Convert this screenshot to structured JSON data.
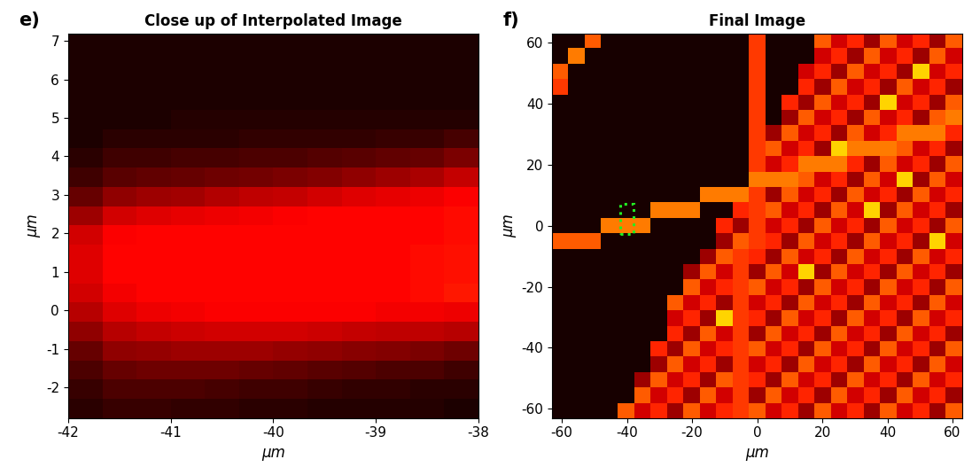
{
  "chart_data": [
    {
      "type": "heatmap",
      "panel_label": "e)",
      "title": "Close up of Interpolated Image",
      "x_label": "μm",
      "y_label": "μm",
      "xlim": [
        -42,
        -38
      ],
      "xticks": [
        -42,
        -41,
        -40,
        -39,
        -38
      ],
      "ylim": [
        -2.8,
        7.2
      ],
      "yticks": [
        -2,
        -1,
        0,
        1,
        2,
        3,
        4,
        5,
        6,
        7
      ],
      "cell_range": [
        0,
        1
      ],
      "cells": [
        [
          0.03,
          0.03,
          0.03,
          0.03,
          0.03,
          0.03,
          0.03,
          0.03,
          0.03,
          0.03,
          0.03,
          0.03
        ],
        [
          0.03,
          0.03,
          0.03,
          0.03,
          0.03,
          0.03,
          0.03,
          0.03,
          0.03,
          0.03,
          0.03,
          0.03
        ],
        [
          0.03,
          0.03,
          0.03,
          0.03,
          0.03,
          0.03,
          0.03,
          0.03,
          0.03,
          0.03,
          0.03,
          0.03
        ],
        [
          0.03,
          0.03,
          0.03,
          0.03,
          0.03,
          0.03,
          0.03,
          0.03,
          0.03,
          0.03,
          0.03,
          0.03
        ],
        [
          0.03,
          0.03,
          0.03,
          0.04,
          0.04,
          0.04,
          0.04,
          0.04,
          0.04,
          0.04,
          0.04,
          0.04
        ],
        [
          0.03,
          0.05,
          0.05,
          0.05,
          0.05,
          0.06,
          0.06,
          0.06,
          0.06,
          0.07,
          0.07,
          0.09
        ],
        [
          0.05,
          0.08,
          0.08,
          0.09,
          0.09,
          0.1,
          0.1,
          0.11,
          0.12,
          0.13,
          0.14,
          0.17
        ],
        [
          0.08,
          0.12,
          0.13,
          0.14,
          0.15,
          0.16,
          0.17,
          0.18,
          0.2,
          0.22,
          0.24,
          0.28
        ],
        [
          0.14,
          0.2,
          0.22,
          0.23,
          0.25,
          0.27,
          0.28,
          0.3,
          0.32,
          0.33,
          0.34,
          0.36
        ],
        [
          0.22,
          0.3,
          0.32,
          0.33,
          0.34,
          0.35,
          0.36,
          0.37,
          0.37,
          0.37,
          0.37,
          0.38
        ],
        [
          0.3,
          0.36,
          0.37,
          0.37,
          0.37,
          0.37,
          0.37,
          0.37,
          0.37,
          0.37,
          0.37,
          0.38
        ],
        [
          0.32,
          0.37,
          0.37,
          0.37,
          0.37,
          0.37,
          0.37,
          0.37,
          0.37,
          0.37,
          0.38,
          0.39
        ],
        [
          0.32,
          0.37,
          0.37,
          0.37,
          0.37,
          0.37,
          0.37,
          0.37,
          0.37,
          0.37,
          0.38,
          0.39
        ],
        [
          0.3,
          0.35,
          0.37,
          0.37,
          0.37,
          0.37,
          0.37,
          0.37,
          0.37,
          0.37,
          0.38,
          0.4
        ],
        [
          0.26,
          0.32,
          0.34,
          0.35,
          0.36,
          0.36,
          0.36,
          0.36,
          0.36,
          0.35,
          0.35,
          0.34
        ],
        [
          0.2,
          0.26,
          0.28,
          0.29,
          0.3,
          0.3,
          0.3,
          0.29,
          0.28,
          0.27,
          0.27,
          0.26
        ],
        [
          0.14,
          0.2,
          0.21,
          0.22,
          0.22,
          0.22,
          0.21,
          0.2,
          0.19,
          0.18,
          0.17,
          0.15
        ],
        [
          0.1,
          0.14,
          0.15,
          0.15,
          0.15,
          0.14,
          0.13,
          0.12,
          0.11,
          0.1,
          0.1,
          0.08
        ],
        [
          0.07,
          0.1,
          0.1,
          0.1,
          0.09,
          0.08,
          0.08,
          0.07,
          0.06,
          0.06,
          0.05,
          0.05
        ],
        [
          0.05,
          0.07,
          0.07,
          0.06,
          0.06,
          0.05,
          0.05,
          0.04,
          0.04,
          0.04,
          0.04,
          0.03
        ]
      ]
    },
    {
      "type": "heatmap",
      "panel_label": "f)",
      "title": "Final Image",
      "x_label": "μm",
      "y_label": "μm",
      "xlim": [
        -63,
        63
      ],
      "xticks": [
        -60,
        -40,
        -20,
        0,
        20,
        40,
        60
      ],
      "ylim": [
        -63,
        63
      ],
      "yticks": [
        -60,
        -40,
        -20,
        0,
        20,
        40,
        60
      ],
      "cell_range": [
        0,
        1
      ],
      "cells": [
        [
          0.02,
          0.02,
          0.5,
          0.02,
          0.02,
          0.02,
          0.02,
          0.02,
          0.02,
          0.02,
          0.02,
          0.02,
          0.45,
          0.02,
          0.02,
          0.02,
          0.5,
          0.3,
          0.42,
          0.22,
          0.5,
          0.3,
          0.42,
          0.22,
          0.5
        ],
        [
          0.02,
          0.55,
          0.02,
          0.02,
          0.02,
          0.02,
          0.02,
          0.02,
          0.02,
          0.02,
          0.02,
          0.02,
          0.45,
          0.02,
          0.02,
          0.02,
          0.3,
          0.42,
          0.22,
          0.5,
          0.3,
          0.42,
          0.22,
          0.5,
          0.3
        ],
        [
          0.5,
          0.02,
          0.02,
          0.02,
          0.02,
          0.02,
          0.02,
          0.02,
          0.02,
          0.02,
          0.02,
          0.02,
          0.45,
          0.02,
          0.02,
          0.3,
          0.42,
          0.22,
          0.5,
          0.3,
          0.42,
          0.22,
          0.68,
          0.3,
          0.42
        ],
        [
          0.45,
          0.02,
          0.02,
          0.02,
          0.02,
          0.02,
          0.02,
          0.02,
          0.02,
          0.02,
          0.02,
          0.02,
          0.45,
          0.02,
          0.02,
          0.42,
          0.22,
          0.5,
          0.3,
          0.42,
          0.22,
          0.5,
          0.3,
          0.42,
          0.22
        ],
        [
          0.02,
          0.02,
          0.02,
          0.02,
          0.02,
          0.02,
          0.02,
          0.02,
          0.02,
          0.02,
          0.02,
          0.02,
          0.45,
          0.02,
          0.42,
          0.22,
          0.5,
          0.3,
          0.42,
          0.22,
          0.68,
          0.3,
          0.42,
          0.22,
          0.5
        ],
        [
          0.02,
          0.02,
          0.02,
          0.02,
          0.02,
          0.02,
          0.02,
          0.02,
          0.02,
          0.02,
          0.02,
          0.02,
          0.45,
          0.02,
          0.22,
          0.5,
          0.3,
          0.42,
          0.22,
          0.5,
          0.3,
          0.42,
          0.22,
          0.5,
          0.55
        ],
        [
          0.02,
          0.02,
          0.02,
          0.02,
          0.02,
          0.02,
          0.02,
          0.02,
          0.02,
          0.02,
          0.02,
          0.02,
          0.45,
          0.22,
          0.5,
          0.3,
          0.42,
          0.22,
          0.5,
          0.3,
          0.42,
          0.55,
          0.55,
          0.55,
          0.42
        ],
        [
          0.02,
          0.02,
          0.02,
          0.02,
          0.02,
          0.02,
          0.02,
          0.02,
          0.02,
          0.02,
          0.02,
          0.02,
          0.45,
          0.5,
          0.3,
          0.42,
          0.22,
          0.68,
          0.55,
          0.55,
          0.55,
          0.5,
          0.3,
          0.42,
          0.22
        ],
        [
          0.02,
          0.02,
          0.02,
          0.02,
          0.02,
          0.02,
          0.02,
          0.02,
          0.02,
          0.02,
          0.02,
          0.02,
          0.45,
          0.3,
          0.42,
          0.55,
          0.55,
          0.55,
          0.42,
          0.22,
          0.5,
          0.3,
          0.42,
          0.22,
          0.5
        ],
        [
          0.02,
          0.02,
          0.02,
          0.02,
          0.02,
          0.02,
          0.02,
          0.02,
          0.02,
          0.02,
          0.02,
          0.02,
          0.55,
          0.55,
          0.55,
          0.5,
          0.3,
          0.42,
          0.22,
          0.5,
          0.3,
          0.68,
          0.22,
          0.5,
          0.3
        ],
        [
          0.02,
          0.02,
          0.02,
          0.02,
          0.02,
          0.02,
          0.02,
          0.02,
          0.02,
          0.55,
          0.55,
          0.55,
          0.45,
          0.22,
          0.5,
          0.3,
          0.42,
          0.22,
          0.5,
          0.3,
          0.42,
          0.22,
          0.5,
          0.3,
          0.42
        ],
        [
          0.02,
          0.02,
          0.02,
          0.02,
          0.02,
          0.02,
          0.55,
          0.55,
          0.55,
          0.02,
          0.02,
          0.42,
          0.45,
          0.5,
          0.3,
          0.42,
          0.22,
          0.5,
          0.3,
          0.68,
          0.22,
          0.5,
          0.3,
          0.42,
          0.22
        ],
        [
          0.02,
          0.02,
          0.02,
          0.55,
          0.55,
          0.55,
          0.02,
          0.02,
          0.02,
          0.02,
          0.42,
          0.22,
          0.45,
          0.3,
          0.42,
          0.22,
          0.5,
          0.3,
          0.42,
          0.22,
          0.5,
          0.3,
          0.42,
          0.22,
          0.5
        ],
        [
          0.5,
          0.5,
          0.5,
          0.02,
          0.02,
          0.02,
          0.02,
          0.02,
          0.02,
          0.02,
          0.22,
          0.5,
          0.45,
          0.42,
          0.22,
          0.5,
          0.3,
          0.42,
          0.22,
          0.5,
          0.3,
          0.42,
          0.22,
          0.68,
          0.3
        ],
        [
          0.02,
          0.02,
          0.02,
          0.02,
          0.02,
          0.02,
          0.02,
          0.02,
          0.02,
          0.22,
          0.5,
          0.45,
          0.42,
          0.22,
          0.5,
          0.3,
          0.42,
          0.22,
          0.5,
          0.3,
          0.42,
          0.22,
          0.5,
          0.3,
          0.42
        ],
        [
          0.02,
          0.02,
          0.02,
          0.02,
          0.02,
          0.02,
          0.02,
          0.02,
          0.22,
          0.5,
          0.3,
          0.45,
          0.22,
          0.5,
          0.3,
          0.68,
          0.22,
          0.5,
          0.3,
          0.42,
          0.22,
          0.5,
          0.3,
          0.42,
          0.22
        ],
        [
          0.02,
          0.02,
          0.02,
          0.02,
          0.02,
          0.02,
          0.02,
          0.02,
          0.5,
          0.3,
          0.42,
          0.45,
          0.5,
          0.3,
          0.42,
          0.22,
          0.5,
          0.3,
          0.42,
          0.22,
          0.5,
          0.3,
          0.42,
          0.22,
          0.5
        ],
        [
          0.02,
          0.02,
          0.02,
          0.02,
          0.02,
          0.02,
          0.02,
          0.5,
          0.3,
          0.42,
          0.22,
          0.45,
          0.3,
          0.42,
          0.22,
          0.5,
          0.3,
          0.42,
          0.22,
          0.5,
          0.3,
          0.42,
          0.22,
          0.5,
          0.3
        ],
        [
          0.02,
          0.02,
          0.02,
          0.02,
          0.02,
          0.02,
          0.02,
          0.3,
          0.42,
          0.22,
          0.68,
          0.45,
          0.42,
          0.22,
          0.5,
          0.3,
          0.42,
          0.22,
          0.5,
          0.3,
          0.42,
          0.22,
          0.5,
          0.3,
          0.42
        ],
        [
          0.02,
          0.02,
          0.02,
          0.02,
          0.02,
          0.02,
          0.02,
          0.42,
          0.22,
          0.5,
          0.3,
          0.45,
          0.22,
          0.5,
          0.3,
          0.42,
          0.22,
          0.5,
          0.3,
          0.42,
          0.22,
          0.5,
          0.3,
          0.42,
          0.22
        ],
        [
          0.02,
          0.02,
          0.02,
          0.02,
          0.02,
          0.02,
          0.42,
          0.22,
          0.5,
          0.3,
          0.42,
          0.45,
          0.5,
          0.3,
          0.42,
          0.22,
          0.5,
          0.3,
          0.42,
          0.22,
          0.5,
          0.3,
          0.42,
          0.22,
          0.5
        ],
        [
          0.02,
          0.02,
          0.02,
          0.02,
          0.02,
          0.02,
          0.22,
          0.5,
          0.3,
          0.42,
          0.22,
          0.45,
          0.3,
          0.42,
          0.22,
          0.5,
          0.3,
          0.42,
          0.22,
          0.5,
          0.3,
          0.42,
          0.22,
          0.5,
          0.3
        ],
        [
          0.02,
          0.02,
          0.02,
          0.02,
          0.02,
          0.22,
          0.5,
          0.3,
          0.42,
          0.22,
          0.5,
          0.45,
          0.42,
          0.22,
          0.5,
          0.3,
          0.42,
          0.22,
          0.5,
          0.3,
          0.42,
          0.22,
          0.5,
          0.3,
          0.42
        ],
        [
          0.02,
          0.02,
          0.02,
          0.02,
          0.02,
          0.5,
          0.3,
          0.42,
          0.22,
          0.5,
          0.3,
          0.45,
          0.22,
          0.5,
          0.3,
          0.42,
          0.22,
          0.5,
          0.3,
          0.42,
          0.22,
          0.5,
          0.3,
          0.42,
          0.22
        ],
        [
          0.02,
          0.02,
          0.02,
          0.02,
          0.5,
          0.3,
          0.42,
          0.22,
          0.5,
          0.3,
          0.42,
          0.45,
          0.5,
          0.3,
          0.42,
          0.22,
          0.5,
          0.3,
          0.42,
          0.22,
          0.5,
          0.3,
          0.42,
          0.22,
          0.5
        ]
      ]
    }
  ]
}
